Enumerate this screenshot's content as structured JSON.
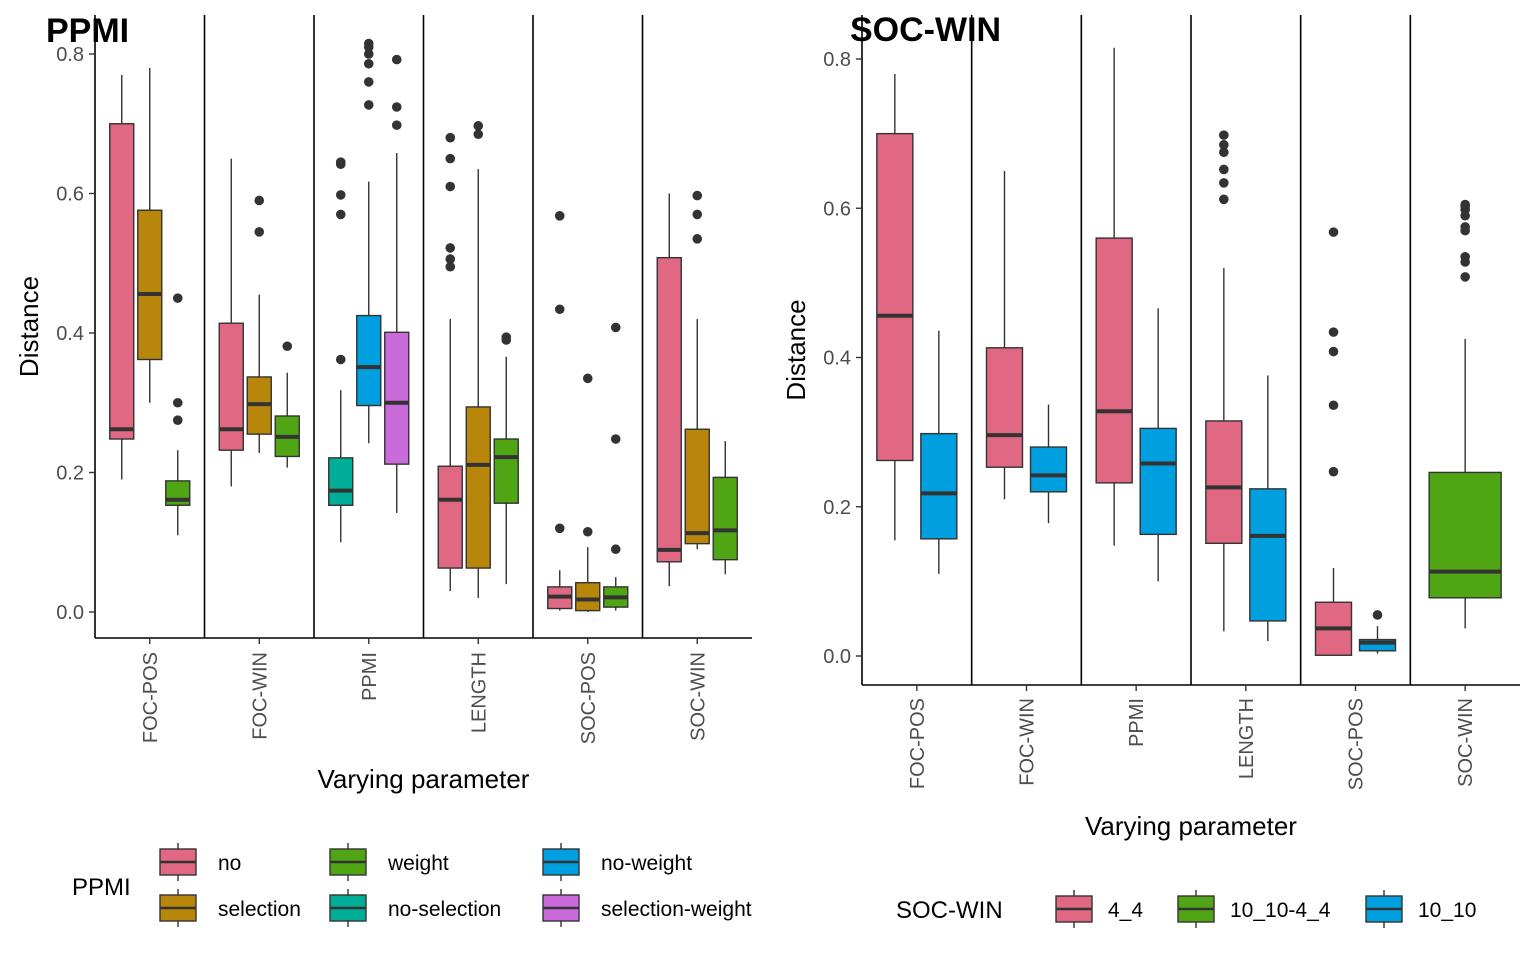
{
  "chart_data": [
    {
      "type": "boxplot",
      "title": "PPMI",
      "xlabel": "Varying parameter",
      "ylabel": "Distance",
      "ylim": [
        -0.04,
        0.86
      ],
      "yticks": [
        "0.0",
        "0.2",
        "0.4",
        "0.6",
        "0.8"
      ],
      "yticks_values": [
        0,
        0.2,
        0.4,
        0.6,
        0.8
      ],
      "categories": [
        "FOC-POS",
        "FOC-WIN",
        "PPMI",
        "LENGTH",
        "SOC-POS",
        "SOC-WIN"
      ],
      "legend": {
        "title": "PPMI",
        "position": "bottom",
        "entries": [
          {
            "name": "no",
            "color": "#E06882"
          },
          {
            "name": "selection",
            "color": "#B8860B"
          },
          {
            "name": "weight",
            "color": "#4FA514"
          },
          {
            "name": "no-selection",
            "color": "#00AE98"
          },
          {
            "name": "no-weight",
            "color": "#009FE0"
          },
          {
            "name": "selection-weight",
            "color": "#C96BDA"
          }
        ],
        "columns": 3
      },
      "groups": [
        {
          "category": "FOC-POS",
          "boxes": [
            {
              "series": "no",
              "whisker_low": 0.19,
              "q1": 0.248,
              "median": 0.262,
              "q3": 0.7,
              "whisker_high": 0.77,
              "outliers": []
            },
            {
              "series": "selection",
              "whisker_low": 0.3,
              "q1": 0.362,
              "median": 0.456,
              "q3": 0.576,
              "whisker_high": 0.78,
              "outliers": []
            },
            {
              "series": "weight",
              "whisker_low": 0.11,
              "q1": 0.153,
              "median": 0.161,
              "q3": 0.188,
              "whisker_high": 0.232,
              "outliers": [
                0.275,
                0.3,
                0.45
              ]
            }
          ]
        },
        {
          "category": "FOC-WIN",
          "boxes": [
            {
              "series": "no",
              "whisker_low": 0.18,
              "q1": 0.232,
              "median": 0.262,
              "q3": 0.414,
              "whisker_high": 0.65,
              "outliers": []
            },
            {
              "series": "selection",
              "whisker_low": 0.228,
              "q1": 0.255,
              "median": 0.298,
              "q3": 0.337,
              "whisker_high": 0.455,
              "outliers": [
                0.545,
                0.59
              ]
            },
            {
              "series": "weight",
              "whisker_low": 0.207,
              "q1": 0.223,
              "median": 0.251,
              "q3": 0.281,
              "whisker_high": 0.343,
              "outliers": [
                0.381
              ]
            }
          ]
        },
        {
          "category": "PPMI",
          "boxes": [
            {
              "series": "no-selection",
              "whisker_low": 0.1,
              "q1": 0.153,
              "median": 0.174,
              "q3": 0.221,
              "whisker_high": 0.318,
              "outliers": [
                0.362,
                0.57,
                0.598,
                0.642,
                0.645
              ]
            },
            {
              "series": "no-weight",
              "whisker_low": 0.242,
              "q1": 0.296,
              "median": 0.351,
              "q3": 0.425,
              "whisker_high": 0.617,
              "outliers": [
                0.727,
                0.76,
                0.786,
                0.8,
                0.81,
                0.815
              ]
            },
            {
              "series": "selection-weight",
              "whisker_low": 0.142,
              "q1": 0.212,
              "median": 0.3,
              "q3": 0.401,
              "whisker_high": 0.658,
              "outliers": [
                0.698,
                0.724,
                0.792
              ]
            }
          ]
        },
        {
          "category": "LENGTH",
          "boxes": [
            {
              "series": "no",
              "whisker_low": 0.03,
              "q1": 0.063,
              "median": 0.161,
              "q3": 0.209,
              "whisker_high": 0.42,
              "outliers": [
                0.495,
                0.506,
                0.522,
                0.61,
                0.65,
                0.68
              ]
            },
            {
              "series": "selection",
              "whisker_low": 0.02,
              "q1": 0.063,
              "median": 0.211,
              "q3": 0.294,
              "whisker_high": 0.635,
              "outliers": [
                0.685,
                0.697
              ]
            },
            {
              "series": "weight",
              "whisker_low": 0.04,
              "q1": 0.156,
              "median": 0.222,
              "q3": 0.248,
              "whisker_high": 0.366,
              "outliers": [
                0.39,
                0.394
              ]
            }
          ]
        },
        {
          "category": "SOC-POS",
          "boxes": [
            {
              "series": "no",
              "whisker_low": 0.002,
              "q1": 0.005,
              "median": 0.022,
              "q3": 0.036,
              "whisker_high": 0.06,
              "outliers": [
                0.12,
                0.434,
                0.568
              ]
            },
            {
              "series": "selection",
              "whisker_low": 0.0,
              "q1": 0.002,
              "median": 0.018,
              "q3": 0.042,
              "whisker_high": 0.093,
              "outliers": [
                0.115,
                0.335
              ]
            },
            {
              "series": "weight",
              "whisker_low": 0.002,
              "q1": 0.007,
              "median": 0.021,
              "q3": 0.036,
              "whisker_high": 0.05,
              "outliers": [
                0.09,
                0.248,
                0.408
              ]
            }
          ]
        },
        {
          "category": "SOC-WIN",
          "boxes": [
            {
              "series": "no",
              "whisker_low": 0.037,
              "q1": 0.072,
              "median": 0.089,
              "q3": 0.508,
              "whisker_high": 0.6,
              "outliers": []
            },
            {
              "series": "selection",
              "whisker_low": 0.09,
              "q1": 0.098,
              "median": 0.113,
              "q3": 0.262,
              "whisker_high": 0.42,
              "outliers": [
                0.535,
                0.57,
                0.597
              ]
            },
            {
              "series": "weight",
              "whisker_low": 0.054,
              "q1": 0.075,
              "median": 0.117,
              "q3": 0.193,
              "whisker_high": 0.245,
              "outliers": []
            }
          ]
        }
      ]
    },
    {
      "type": "boxplot",
      "title": "SOC-WIN",
      "xlabel": "Varying parameter",
      "ylabel": "Distance",
      "ylim": [
        -0.04,
        0.84
      ],
      "yticks": [
        "0.0",
        "0.2",
        "0.4",
        "0.6",
        "0.8"
      ],
      "yticks_values": [
        0,
        0.2,
        0.4,
        0.6,
        0.8
      ],
      "categories": [
        "FOC-POS",
        "FOC-WIN",
        "PPMI",
        "LENGTH",
        "SOC-POS",
        "SOC-WIN"
      ],
      "legend": {
        "title": "SOC-WIN",
        "position": "bottom",
        "entries": [
          {
            "name": "4_4",
            "color": "#E06882"
          },
          {
            "name": "10_10-4_4",
            "color": "#4FA514"
          },
          {
            "name": "10_10",
            "color": "#009FE0"
          }
        ],
        "columns": 3
      },
      "groups": [
        {
          "category": "FOC-POS",
          "boxes": [
            {
              "series": "4_4",
              "whisker_low": 0.155,
              "q1": 0.262,
              "median": 0.456,
              "q3": 0.7,
              "whisker_high": 0.78,
              "outliers": []
            },
            {
              "series": "10_10",
              "whisker_low": 0.11,
              "q1": 0.157,
              "median": 0.218,
              "q3": 0.298,
              "whisker_high": 0.436,
              "outliers": []
            }
          ]
        },
        {
          "category": "FOC-WIN",
          "boxes": [
            {
              "series": "4_4",
              "whisker_low": 0.21,
              "q1": 0.253,
              "median": 0.296,
              "q3": 0.413,
              "whisker_high": 0.65,
              "outliers": []
            },
            {
              "series": "10_10",
              "whisker_low": 0.178,
              "q1": 0.22,
              "median": 0.242,
              "q3": 0.28,
              "whisker_high": 0.337,
              "outliers": []
            }
          ]
        },
        {
          "category": "PPMI",
          "boxes": [
            {
              "series": "4_4",
              "whisker_low": 0.148,
              "q1": 0.232,
              "median": 0.328,
              "q3": 0.56,
              "whisker_high": 0.815,
              "outliers": []
            },
            {
              "series": "10_10",
              "whisker_low": 0.1,
              "q1": 0.163,
              "median": 0.258,
              "q3": 0.305,
              "whisker_high": 0.466,
              "outliers": []
            }
          ]
        },
        {
          "category": "LENGTH",
          "boxes": [
            {
              "series": "4_4",
              "whisker_low": 0.033,
              "q1": 0.151,
              "median": 0.226,
              "q3": 0.315,
              "whisker_high": 0.52,
              "outliers": [
                0.612,
                0.634,
                0.652,
                0.675,
                0.685,
                0.698
              ]
            },
            {
              "series": "10_10",
              "whisker_low": 0.02,
              "q1": 0.047,
              "median": 0.161,
              "q3": 0.224,
              "whisker_high": 0.376,
              "outliers": []
            }
          ]
        },
        {
          "category": "SOC-POS",
          "boxes": [
            {
              "series": "4_4",
              "whisker_low": 0.0,
              "q1": 0.001,
              "median": 0.037,
              "q3": 0.072,
              "whisker_high": 0.118,
              "outliers": [
                0.247,
                0.336,
                0.408,
                0.434,
                0.568
              ]
            },
            {
              "series": "10_10",
              "whisker_low": 0.003,
              "q1": 0.007,
              "median": 0.018,
              "q3": 0.022,
              "whisker_high": 0.04,
              "outliers": [
                0.055
              ]
            }
          ]
        },
        {
          "category": "SOC-WIN",
          "boxes": [
            {
              "series": "10_10-4_4",
              "whisker_low": 0.037,
              "q1": 0.078,
              "median": 0.113,
              "q3": 0.246,
              "whisker_high": 0.425,
              "outliers": [
                0.508,
                0.528,
                0.535,
                0.57,
                0.575,
                0.59,
                0.598,
                0.602,
                0.605
              ]
            }
          ]
        }
      ]
    }
  ]
}
